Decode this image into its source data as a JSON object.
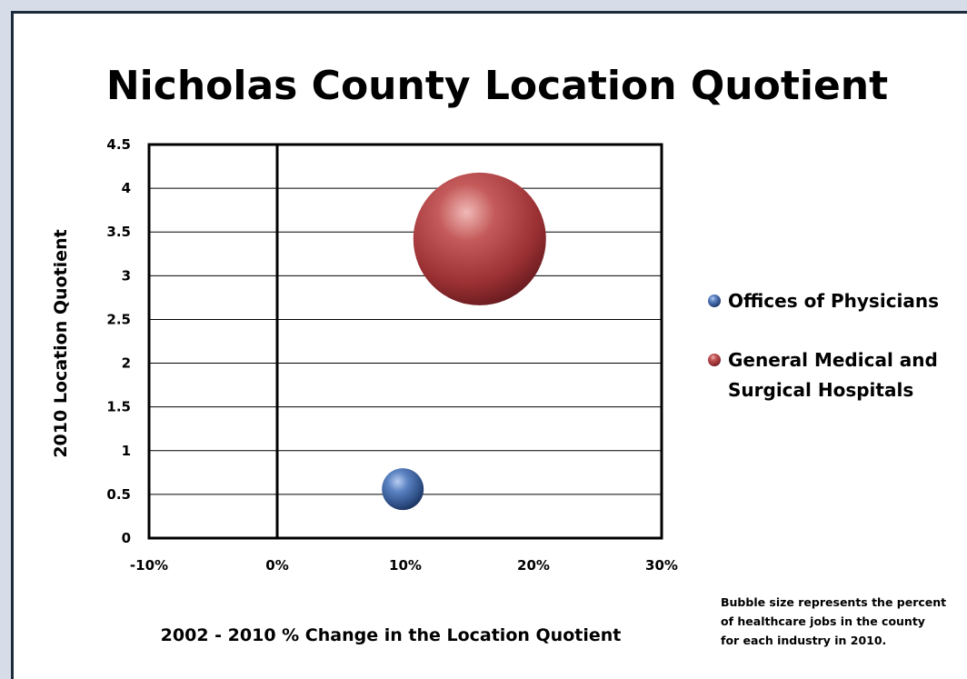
{
  "chart_data": {
    "type": "bubble",
    "title": "Nicholas County Location Quotient",
    "xlabel": "2002 - 2010 % Change in the Location Quotient",
    "ylabel": "2010 Location Quotient",
    "xlim": [
      -10,
      30
    ],
    "ylim": [
      0,
      4.5
    ],
    "x_ticks": [
      "-10%",
      "0%",
      "10%",
      "20%",
      "30%"
    ],
    "x_tick_values": [
      -10,
      0,
      10,
      20,
      30
    ],
    "y_ticks": [
      "0",
      "0.5",
      "1",
      "1.5",
      "2",
      "2.5",
      "3",
      "3.5",
      "4",
      "4.5"
    ],
    "y_tick_values": [
      0,
      0.5,
      1,
      1.5,
      2,
      2.5,
      3,
      3.5,
      4,
      4.5
    ],
    "grid": "horizontal",
    "legend_position": "right",
    "series": [
      {
        "name": "Offices of Physicians",
        "x": 9.8,
        "y": 0.56,
        "size": 1,
        "color": "#4a72b0"
      },
      {
        "name": "General Medical and Surgical Hospitals",
        "x": 15.8,
        "y": 3.42,
        "size": 10,
        "color": "#b84a4c"
      }
    ],
    "note": [
      "Bubble size represents the percent",
      "of healthcare jobs in the county",
      "for each industry in 2010."
    ]
  }
}
